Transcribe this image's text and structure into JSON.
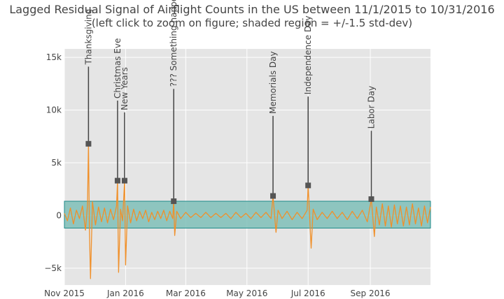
{
  "chart_data": {
    "type": "line",
    "title": "Lagged Residual Signal of Airflight Counts in the US between 11/1/2015 to 10/31/2016",
    "subtitle": "(left click to zoom on figure; shaded region = +/-1.5 std-dev)",
    "xlabel": "",
    "ylabel": "",
    "ylim": [
      -6600,
      15800
    ],
    "xlim": [
      "2015-11-01",
      "2016-10-31"
    ],
    "grid": true,
    "x_ticks": [
      {
        "date": "2015-11-01",
        "label": "Nov 2015"
      },
      {
        "date": "2016-01-01",
        "label": "Jan 2016"
      },
      {
        "date": "2016-03-01",
        "label": "Mar 2016"
      },
      {
        "date": "2016-05-01",
        "label": "May 2016"
      },
      {
        "date": "2016-07-01",
        "label": "Jul 2016"
      },
      {
        "date": "2016-09-01",
        "label": "Sep 2016"
      }
    ],
    "y_ticks": [
      {
        "value": -5000,
        "label": "−5k"
      },
      {
        "value": 0,
        "label": "0"
      },
      {
        "value": 5000,
        "label": "5k"
      },
      {
        "value": 10000,
        "label": "10k"
      },
      {
        "value": 15000,
        "label": "15k"
      }
    ],
    "band": {
      "lower": -1200,
      "upper": 1350
    },
    "series": [
      {
        "points": [
          {
            "x": "2015-11-01",
            "y": 200
          },
          {
            "x": "2015-11-04",
            "y": -500
          },
          {
            "x": "2015-11-07",
            "y": 700
          },
          {
            "x": "2015-11-10",
            "y": -800
          },
          {
            "x": "2015-11-13",
            "y": 500
          },
          {
            "x": "2015-11-16",
            "y": -300
          },
          {
            "x": "2015-11-19",
            "y": 900
          },
          {
            "x": "2015-11-22",
            "y": -1400
          },
          {
            "x": "2015-11-24",
            "y": 1000
          },
          {
            "x": "2015-11-25",
            "y": 6800
          },
          {
            "x": "2015-11-26",
            "y": -1500
          },
          {
            "x": "2015-11-27",
            "y": -6000
          },
          {
            "x": "2015-11-29",
            "y": 1300
          },
          {
            "x": "2015-12-02",
            "y": -900
          },
          {
            "x": "2015-12-05",
            "y": 800
          },
          {
            "x": "2015-12-08",
            "y": -600
          },
          {
            "x": "2015-12-11",
            "y": 700
          },
          {
            "x": "2015-12-14",
            "y": -700
          },
          {
            "x": "2015-12-17",
            "y": 600
          },
          {
            "x": "2015-12-20",
            "y": -400
          },
          {
            "x": "2015-12-23",
            "y": 900
          },
          {
            "x": "2015-12-24",
            "y": 3300
          },
          {
            "x": "2015-12-25",
            "y": -5400
          },
          {
            "x": "2015-12-27",
            "y": 600
          },
          {
            "x": "2015-12-29",
            "y": -500
          },
          {
            "x": "2015-12-31",
            "y": 3300
          },
          {
            "x": "2016-01-01",
            "y": -4700
          },
          {
            "x": "2016-01-03",
            "y": 900
          },
          {
            "x": "2016-01-06",
            "y": -700
          },
          {
            "x": "2016-01-09",
            "y": 600
          },
          {
            "x": "2016-01-12",
            "y": -500
          },
          {
            "x": "2016-01-15",
            "y": 400
          },
          {
            "x": "2016-01-18",
            "y": -300
          },
          {
            "x": "2016-01-21",
            "y": 500
          },
          {
            "x": "2016-01-24",
            "y": -600
          },
          {
            "x": "2016-01-27",
            "y": 300
          },
          {
            "x": "2016-01-30",
            "y": -400
          },
          {
            "x": "2016-02-02",
            "y": 400
          },
          {
            "x": "2016-02-05",
            "y": -300
          },
          {
            "x": "2016-02-08",
            "y": 500
          },
          {
            "x": "2016-02-11",
            "y": -500
          },
          {
            "x": "2016-02-14",
            "y": 400
          },
          {
            "x": "2016-02-17",
            "y": -300
          },
          {
            "x": "2016-02-18",
            "y": 1350
          },
          {
            "x": "2016-02-19",
            "y": -1900
          },
          {
            "x": "2016-02-21",
            "y": 400
          },
          {
            "x": "2016-02-25",
            "y": -300
          },
          {
            "x": "2016-03-01",
            "y": 300
          },
          {
            "x": "2016-03-06",
            "y": -200
          },
          {
            "x": "2016-03-11",
            "y": 200
          },
          {
            "x": "2016-03-16",
            "y": -200
          },
          {
            "x": "2016-03-21",
            "y": 300
          },
          {
            "x": "2016-03-26",
            "y": -200
          },
          {
            "x": "2016-03-31",
            "y": 200
          },
          {
            "x": "2016-04-05",
            "y": -200
          },
          {
            "x": "2016-04-10",
            "y": 200
          },
          {
            "x": "2016-04-15",
            "y": -300
          },
          {
            "x": "2016-04-20",
            "y": 300
          },
          {
            "x": "2016-04-25",
            "y": -200
          },
          {
            "x": "2016-04-30",
            "y": 200
          },
          {
            "x": "2016-05-05",
            "y": -300
          },
          {
            "x": "2016-05-10",
            "y": 300
          },
          {
            "x": "2016-05-15",
            "y": -200
          },
          {
            "x": "2016-05-20",
            "y": 300
          },
          {
            "x": "2016-05-25",
            "y": -300
          },
          {
            "x": "2016-05-27",
            "y": 1850
          },
          {
            "x": "2016-05-30",
            "y": -1600
          },
          {
            "x": "2016-06-01",
            "y": 500
          },
          {
            "x": "2016-06-05",
            "y": -300
          },
          {
            "x": "2016-06-10",
            "y": 400
          },
          {
            "x": "2016-06-15",
            "y": -400
          },
          {
            "x": "2016-06-20",
            "y": 300
          },
          {
            "x": "2016-06-25",
            "y": -300
          },
          {
            "x": "2016-06-30",
            "y": 500
          },
          {
            "x": "2016-07-01",
            "y": 2850
          },
          {
            "x": "2016-07-04",
            "y": -3100
          },
          {
            "x": "2016-07-06",
            "y": 600
          },
          {
            "x": "2016-07-10",
            "y": -400
          },
          {
            "x": "2016-07-15",
            "y": 300
          },
          {
            "x": "2016-07-20",
            "y": -300
          },
          {
            "x": "2016-07-25",
            "y": 400
          },
          {
            "x": "2016-07-30",
            "y": -300
          },
          {
            "x": "2016-08-04",
            "y": 300
          },
          {
            "x": "2016-08-09",
            "y": -400
          },
          {
            "x": "2016-08-14",
            "y": 400
          },
          {
            "x": "2016-08-19",
            "y": -300
          },
          {
            "x": "2016-08-24",
            "y": 500
          },
          {
            "x": "2016-08-29",
            "y": -600
          },
          {
            "x": "2016-09-02",
            "y": 1550
          },
          {
            "x": "2016-09-05",
            "y": -2000
          },
          {
            "x": "2016-09-07",
            "y": 800
          },
          {
            "x": "2016-09-10",
            "y": -900
          },
          {
            "x": "2016-09-13",
            "y": 1100
          },
          {
            "x": "2016-09-16",
            "y": -1000
          },
          {
            "x": "2016-09-19",
            "y": 900
          },
          {
            "x": "2016-09-22",
            "y": -1100
          },
          {
            "x": "2016-09-25",
            "y": 1000
          },
          {
            "x": "2016-09-28",
            "y": -800
          },
          {
            "x": "2016-10-01",
            "y": 900
          },
          {
            "x": "2016-10-04",
            "y": -1000
          },
          {
            "x": "2016-10-07",
            "y": 800
          },
          {
            "x": "2016-10-10",
            "y": -900
          },
          {
            "x": "2016-10-13",
            "y": 1100
          },
          {
            "x": "2016-10-16",
            "y": -800
          },
          {
            "x": "2016-10-19",
            "y": 700
          },
          {
            "x": "2016-10-22",
            "y": -1000
          },
          {
            "x": "2016-10-25",
            "y": 900
          },
          {
            "x": "2016-10-28",
            "y": -700
          },
          {
            "x": "2016-10-31",
            "y": 800
          }
        ]
      }
    ],
    "annotations": [
      {
        "label": "Thanksgiving",
        "x": "2015-11-25",
        "y": 6800
      },
      {
        "label": "Christmas Eve",
        "x": "2015-12-24",
        "y": 3300
      },
      {
        "label": "New Years",
        "x": "2015-12-31",
        "y": 3300
      },
      {
        "label": "??? Something happen ???",
        "x": "2016-02-18",
        "y": 1350
      },
      {
        "label": "Memorials Day",
        "x": "2016-05-27",
        "y": 1850
      },
      {
        "label": "Independence Day",
        "x": "2016-07-01",
        "y": 2850
      },
      {
        "label": "Labor Day",
        "x": "2016-09-02",
        "y": 1550
      }
    ],
    "colors": {
      "line": "#f0902a",
      "band_fill": "#7fbfb9",
      "band_stroke": "#1f8a8a",
      "marker": "#555555",
      "plot_bg": "#e5e5e5",
      "grid": "#ffffff"
    }
  }
}
